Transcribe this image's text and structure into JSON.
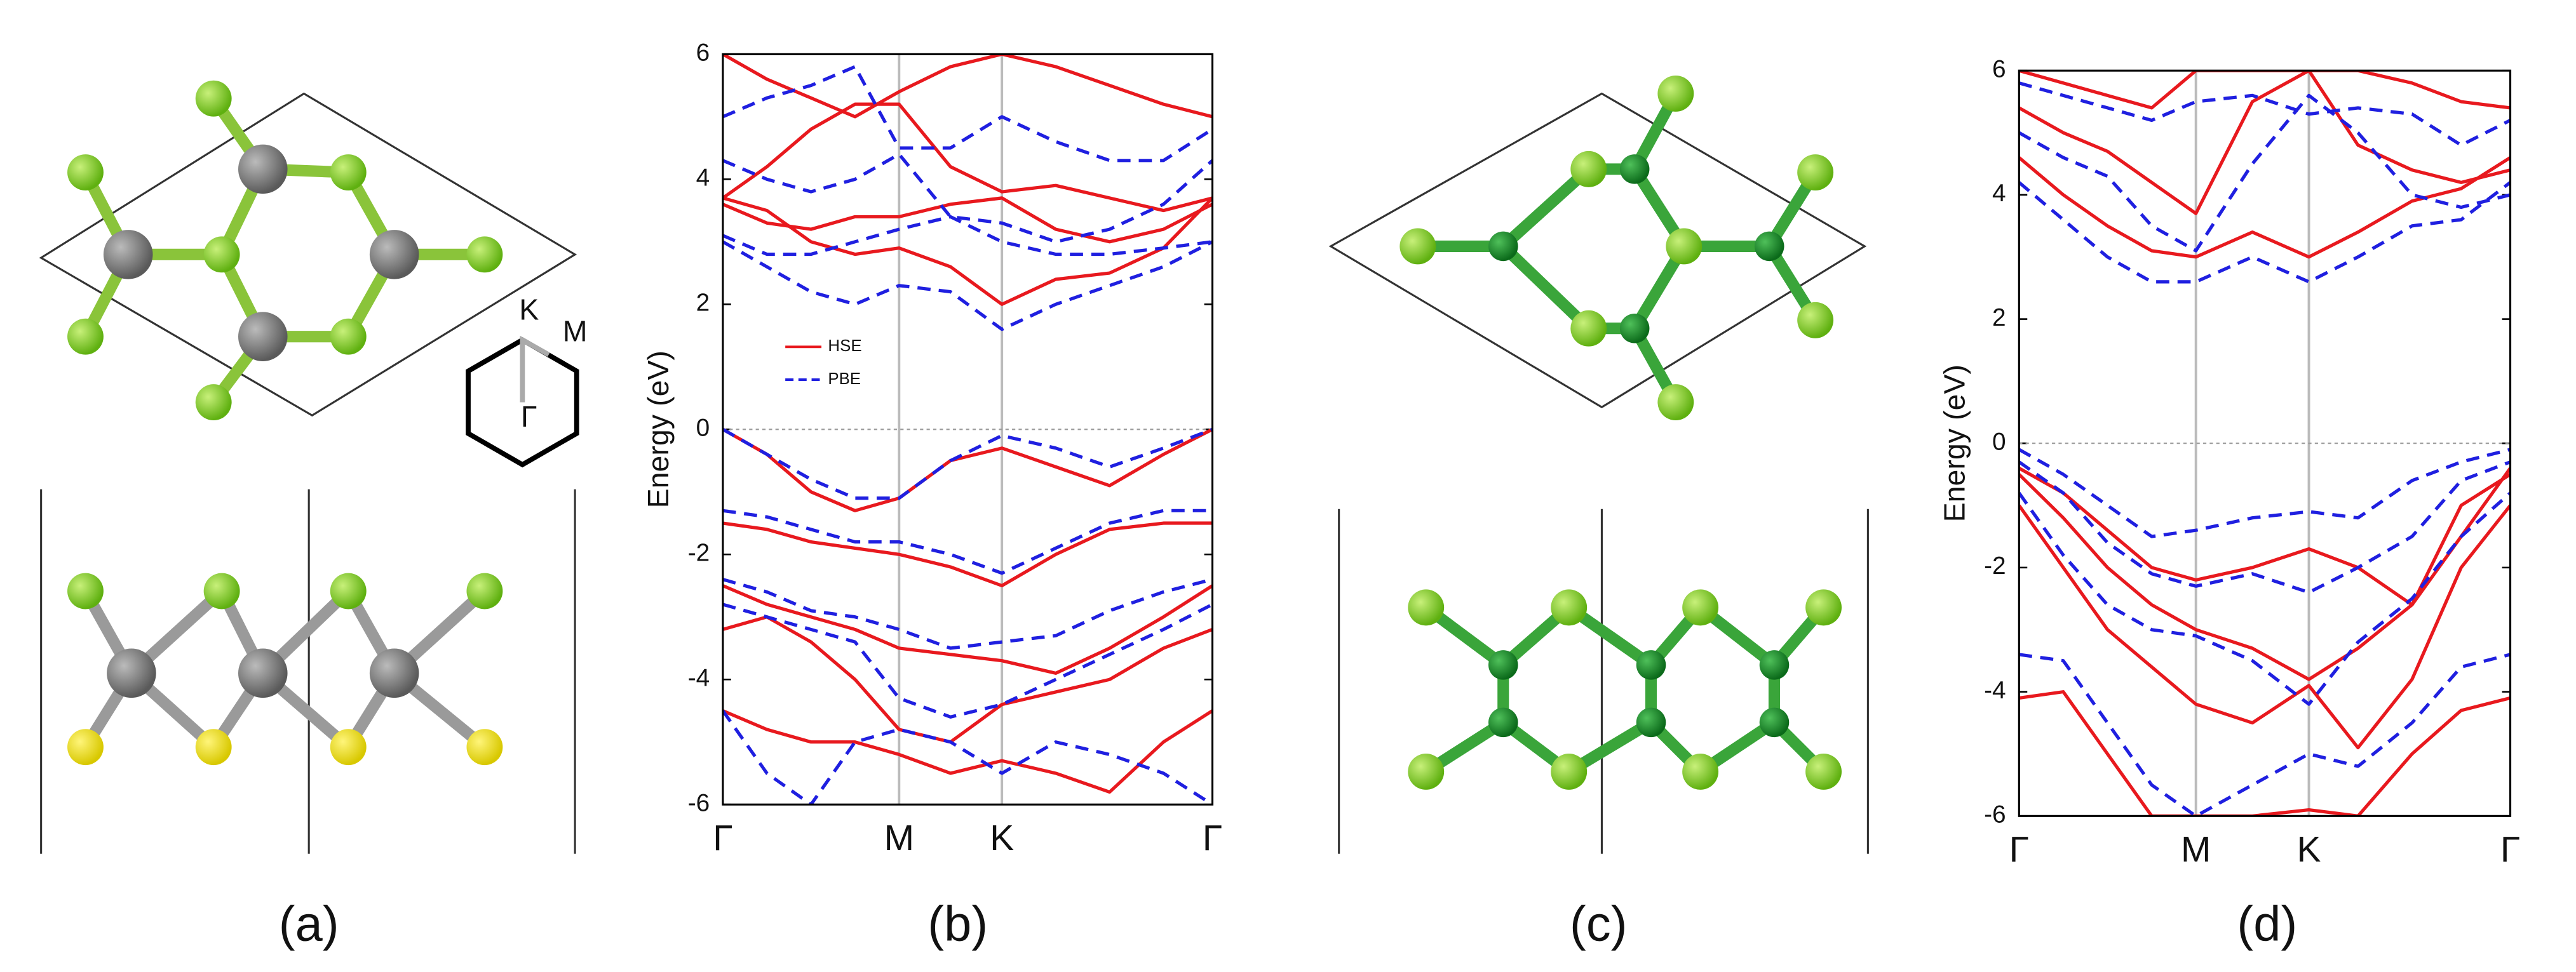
{
  "panels": {
    "labels": [
      "(a)",
      "(b)",
      "(c)",
      "(d)"
    ],
    "bz_labels": [
      "K",
      "M",
      "Γ"
    ]
  },
  "chart_data": [
    {
      "type": "line",
      "ylabel": "Energy (eV)",
      "legend": "upper-left",
      "zero_line": true,
      "x": [
        0,
        0.09,
        0.18,
        0.27,
        0.36,
        0.465,
        0.57,
        0.68,
        0.79,
        0.9,
        1
      ],
      "xlim": [
        0,
        1
      ],
      "xticks": [
        {
          "value": 0,
          "label": "Γ"
        },
        {
          "value": 0.36,
          "label": "M"
        },
        {
          "value": 0.57,
          "label": "K"
        },
        {
          "value": 1,
          "label": "Γ"
        }
      ],
      "ylim": [
        -6,
        6
      ],
      "yticks": [
        -6,
        -4,
        -2,
        0,
        2,
        4,
        6
      ],
      "series": [
        {
          "name": "HSE",
          "color": "#e8191e",
          "dashed": false,
          "bands": [
            [
              0,
              -0.4,
              -1.0,
              -1.3,
              -1.1,
              -0.5,
              -0.3,
              -0.6,
              -0.9,
              -0.4,
              0
            ],
            [
              -1.5,
              -1.6,
              -1.8,
              -1.9,
              -2.0,
              -2.2,
              -2.5,
              -2.0,
              -1.6,
              -1.5,
              -1.5
            ],
            [
              -2.5,
              -2.8,
              -3.0,
              -3.2,
              -3.5,
              -3.6,
              -3.7,
              -3.9,
              -3.5,
              -3.0,
              -2.5
            ],
            [
              -3.2,
              -3.0,
              -3.4,
              -4.0,
              -4.8,
              -5.0,
              -4.4,
              -4.2,
              -4.0,
              -3.5,
              -3.2
            ],
            [
              -4.5,
              -4.8,
              -5.0,
              -5.0,
              -5.2,
              -5.5,
              -5.3,
              -5.5,
              -5.8,
              -5.0,
              -4.5
            ],
            [
              3.7,
              3.5,
              3.0,
              2.8,
              2.9,
              2.6,
              2.0,
              2.4,
              2.5,
              2.9,
              3.7
            ],
            [
              3.6,
              3.3,
              3.2,
              3.4,
              3.4,
              3.6,
              3.7,
              3.2,
              3.0,
              3.2,
              3.6
            ],
            [
              3.7,
              4.2,
              4.8,
              5.2,
              5.2,
              4.2,
              3.8,
              3.9,
              3.7,
              3.5,
              3.7
            ],
            [
              6,
              5.6,
              5.3,
              5.0,
              5.4,
              5.8,
              6,
              5.8,
              5.5,
              5.2,
              5.0
            ]
          ]
        },
        {
          "name": "PBE",
          "color": "#1f1fe0",
          "dashed": true,
          "bands": [
            [
              0,
              -0.4,
              -0.8,
              -1.1,
              -1.1,
              -0.5,
              -0.1,
              -0.3,
              -0.6,
              -0.3,
              0
            ],
            [
              -1.3,
              -1.4,
              -1.6,
              -1.8,
              -1.8,
              -2.0,
              -2.3,
              -1.9,
              -1.5,
              -1.3,
              -1.3
            ],
            [
              -2.4,
              -2.6,
              -2.9,
              -3.0,
              -3.2,
              -3.5,
              -3.4,
              -3.3,
              -2.9,
              -2.6,
              -2.4
            ],
            [
              -2.8,
              -3.0,
              -3.2,
              -3.4,
              -4.3,
              -4.6,
              -4.4,
              -4.0,
              -3.6,
              -3.2,
              -2.8
            ],
            [
              -4.5,
              -5.5,
              -6,
              -5.0,
              -4.8,
              -5.0,
              -5.5,
              -5.0,
              -5.2,
              -5.5,
              -6
            ],
            [
              3.0,
              2.6,
              2.2,
              2.0,
              2.3,
              2.2,
              1.6,
              2.0,
              2.3,
              2.6,
              3.0
            ],
            [
              3.1,
              2.8,
              2.8,
              3.0,
              3.2,
              3.4,
              3.0,
              2.8,
              2.8,
              2.9,
              3.0
            ],
            [
              4.3,
              4.0,
              3.8,
              4.0,
              4.4,
              3.4,
              3.3,
              3.0,
              3.2,
              3.6,
              4.3
            ],
            [
              5.0,
              5.3,
              5.5,
              5.8,
              4.5,
              4.5,
              5.0,
              4.6,
              4.3,
              4.3,
              4.8
            ]
          ]
        }
      ]
    },
    {
      "type": "line",
      "ylabel": "Energy (eV)",
      "legend": false,
      "zero_line": true,
      "x": [
        0,
        0.09,
        0.18,
        0.27,
        0.36,
        0.475,
        0.59,
        0.69,
        0.8,
        0.9,
        1
      ],
      "xlim": [
        0,
        1
      ],
      "xticks": [
        {
          "value": 0,
          "label": "Γ"
        },
        {
          "value": 0.36,
          "label": "M"
        },
        {
          "value": 0.59,
          "label": "K"
        },
        {
          "value": 1,
          "label": "Γ"
        }
      ],
      "ylim": [
        -6,
        6
      ],
      "yticks": [
        -6,
        -4,
        -2,
        0,
        2,
        4,
        6
      ],
      "series": [
        {
          "color": "#e8191e",
          "dashed": false,
          "bands": [
            [
              -0.4,
              -0.8,
              -1.4,
              -2.0,
              -2.2,
              -2.0,
              -1.7,
              -2.0,
              -2.6,
              -1.5,
              -0.4
            ],
            [
              -0.5,
              -1.2,
              -2.0,
              -2.6,
              -3.0,
              -3.3,
              -3.8,
              -3.3,
              -2.6,
              -1.0,
              -0.5
            ],
            [
              -1.0,
              -2.0,
              -3.0,
              -3.6,
              -4.2,
              -4.5,
              -3.9,
              -4.9,
              -3.8,
              -2.0,
              -1.0
            ],
            [
              -4.1,
              -4.0,
              -5.0,
              -6,
              -6,
              -6,
              -5.9,
              -6,
              -5.0,
              -4.3,
              -4.1
            ],
            [
              4.6,
              4.0,
              3.5,
              3.1,
              3.0,
              3.4,
              3.0,
              3.4,
              3.9,
              4.1,
              4.6
            ],
            [
              5.4,
              5.0,
              4.7,
              4.2,
              3.7,
              5.5,
              6,
              4.8,
              4.4,
              4.2,
              4.4
            ],
            [
              6,
              5.8,
              5.6,
              5.4,
              6,
              6,
              6,
              6,
              5.8,
              5.5,
              5.4
            ]
          ]
        },
        {
          "color": "#1f1fe0",
          "dashed": true,
          "bands": [
            [
              -0.1,
              -0.5,
              -1.0,
              -1.5,
              -1.4,
              -1.2,
              -1.1,
              -1.2,
              -0.6,
              -0.3,
              -0.1
            ],
            [
              -0.3,
              -0.8,
              -1.6,
              -2.1,
              -2.3,
              -2.1,
              -2.4,
              -2.0,
              -1.5,
              -0.6,
              -0.3
            ],
            [
              -0.8,
              -1.8,
              -2.6,
              -3.0,
              -3.1,
              -3.5,
              -4.2,
              -3.2,
              -2.5,
              -1.5,
              -0.8
            ],
            [
              -3.4,
              -3.5,
              -4.5,
              -5.5,
              -6,
              -5.5,
              -5.0,
              -5.2,
              -4.5,
              -3.6,
              -3.4
            ],
            [
              4.2,
              3.6,
              3.0,
              2.6,
              2.6,
              3.0,
              2.6,
              3.0,
              3.5,
              3.6,
              4.2
            ],
            [
              5.0,
              4.6,
              4.3,
              3.5,
              3.1,
              4.5,
              5.6,
              5.0,
              4.0,
              3.8,
              4.0
            ],
            [
              5.8,
              5.6,
              5.4,
              5.2,
              5.5,
              5.6,
              5.3,
              5.4,
              5.3,
              4.8,
              5.2
            ]
          ]
        }
      ]
    }
  ]
}
